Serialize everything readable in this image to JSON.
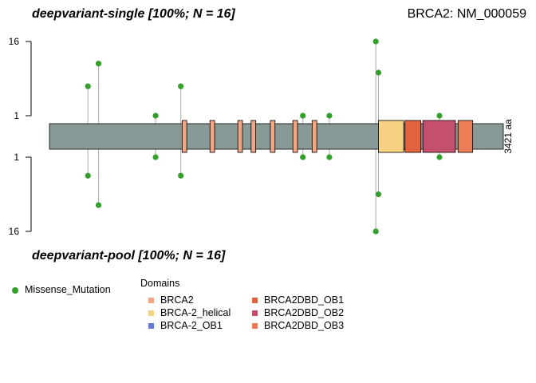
{
  "titles": {
    "top": "deepvariant-single [100%; N = 16]",
    "right": "BRCA2: NM_000059",
    "bottom": "deepvariant-pool [100%; N = 16]"
  },
  "legend": {
    "mutation": {
      "label": "Missense_Mutation",
      "color": "#33a02c"
    },
    "domains_title": "Domains",
    "domains": [
      {
        "name": "BRCA2",
        "color": "#f4a582"
      },
      {
        "name": "BRCA-2_helical",
        "color": "#f6d282"
      },
      {
        "name": "BRCA-2_OB1",
        "color": "#6a79d4"
      },
      {
        "name": "BRCA2DBD_OB1",
        "color": "#e2643e"
      },
      {
        "name": "BRCA2DBD_OB2",
        "color": "#c4506e"
      },
      {
        "name": "BRCA2DBD_OB3",
        "color": "#ec7d56"
      }
    ]
  },
  "chart_data": {
    "type": "lollipop",
    "gene": "BRCA2",
    "transcript": "NM_000059",
    "protein_length": 3421,
    "protein_length_label": "3421 aa",
    "y_axis_top": {
      "ticks": [
        "16",
        "1"
      ],
      "scale": "log",
      "range": [
        1,
        16
      ]
    },
    "y_axis_bottom": {
      "ticks": [
        "1",
        "16"
      ],
      "scale": "log",
      "range": [
        1,
        16
      ]
    },
    "domains": [
      {
        "name": "BRCA2",
        "start": 1000,
        "end": 1035
      },
      {
        "name": "BRCA2",
        "start": 1210,
        "end": 1245
      },
      {
        "name": "BRCA2",
        "start": 1420,
        "end": 1455
      },
      {
        "name": "BRCA2",
        "start": 1520,
        "end": 1555
      },
      {
        "name": "BRCA2",
        "start": 1665,
        "end": 1700
      },
      {
        "name": "BRCA2",
        "start": 1835,
        "end": 1870
      },
      {
        "name": "BRCA2",
        "start": 1980,
        "end": 2015
      },
      {
        "name": "BRCA-2_helical",
        "start": 2480,
        "end": 2670
      },
      {
        "name": "BRCA2DBD_OB1",
        "start": 2680,
        "end": 2800
      },
      {
        "name": "BRCA2DBD_OB2",
        "start": 2815,
        "end": 3060
      },
      {
        "name": "BRCA2DBD_OB3",
        "start": 3080,
        "end": 3190
      }
    ],
    "series": [
      {
        "name": "deepvariant-single",
        "points": [
          {
            "pos": 290,
            "count": 3,
            "class": "Missense_Mutation"
          },
          {
            "pos": 370,
            "count": 7,
            "class": "Missense_Mutation"
          },
          {
            "pos": 800,
            "count": 1,
            "class": "Missense_Mutation"
          },
          {
            "pos": 990,
            "count": 3,
            "class": "Missense_Mutation"
          },
          {
            "pos": 1910,
            "count": 1,
            "class": "Missense_Mutation"
          },
          {
            "pos": 2110,
            "count": 1,
            "class": "Missense_Mutation"
          },
          {
            "pos": 2460,
            "count": 16,
            "class": "Missense_Mutation"
          },
          {
            "pos": 2480,
            "count": 5,
            "class": "Missense_Mutation"
          },
          {
            "pos": 2940,
            "count": 1,
            "class": "Missense_Mutation"
          }
        ]
      },
      {
        "name": "deepvariant-pool",
        "points": [
          {
            "pos": 290,
            "count": 2,
            "class": "Missense_Mutation"
          },
          {
            "pos": 370,
            "count": 6,
            "class": "Missense_Mutation"
          },
          {
            "pos": 800,
            "count": 1,
            "class": "Missense_Mutation"
          },
          {
            "pos": 990,
            "count": 2,
            "class": "Missense_Mutation"
          },
          {
            "pos": 1910,
            "count": 1,
            "class": "Missense_Mutation"
          },
          {
            "pos": 2110,
            "count": 1,
            "class": "Missense_Mutation"
          },
          {
            "pos": 2460,
            "count": 16,
            "class": "Missense_Mutation"
          },
          {
            "pos": 2480,
            "count": 4,
            "class": "Missense_Mutation"
          },
          {
            "pos": 2940,
            "count": 1,
            "class": "Missense_Mutation"
          }
        ]
      }
    ],
    "colors": {
      "protein_bar": "#889a98",
      "lollipop_stem": "#aaaaaa",
      "point": "#33a02c"
    }
  }
}
